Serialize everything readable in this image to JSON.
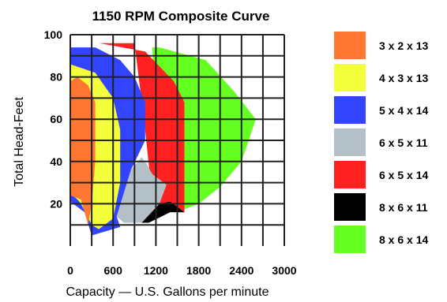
{
  "chart_data": {
    "type": "area",
    "title": "1150 RPM Composite Curve",
    "xlabel": "Capacity — U.S. Gallons per minute",
    "ylabel": "Total Head-Feet",
    "xlim": [
      0,
      3000
    ],
    "ylim": [
      0,
      100
    ],
    "x_ticks": [
      "0",
      "600",
      "1200",
      "1800",
      "2400",
      "3000"
    ],
    "y_ticks": [
      "20",
      "40",
      "60",
      "80",
      "100"
    ],
    "x_tick_values": [
      0,
      600,
      1200,
      1800,
      2400,
      3000
    ],
    "y_tick_values": [
      20,
      40,
      60,
      80,
      100
    ],
    "grid": true,
    "legend_position": "right",
    "series": [
      {
        "name": "8 x 6 x 14",
        "color": "#66ff22",
        "points": [
          [
            1250,
            94
          ],
          [
            1900,
            88
          ],
          [
            2300,
            73
          ],
          [
            2600,
            60
          ],
          [
            2400,
            40
          ],
          [
            2100,
            28
          ],
          [
            1800,
            20
          ],
          [
            1500,
            16
          ],
          [
            1200,
            30
          ],
          [
            1150,
            94
          ]
        ]
      },
      {
        "name": "6 x 5 x 14",
        "color": "#ff2020",
        "points": [
          [
            0,
            96
          ],
          [
            400,
            96
          ],
          [
            1050,
            92
          ],
          [
            1450,
            78
          ],
          [
            1600,
            68
          ],
          [
            1600,
            16
          ],
          [
            1350,
            16
          ],
          [
            1150,
            22
          ],
          [
            1050,
            55
          ],
          [
            900,
            96
          ]
        ]
      },
      {
        "name": "8 x 6 x 11",
        "color": "#000000",
        "points": [
          [
            1000,
            11
          ],
          [
            1250,
            20
          ],
          [
            1400,
            21
          ],
          [
            1600,
            16
          ],
          [
            1400,
            16
          ],
          [
            1100,
            11
          ]
        ]
      },
      {
        "name": "6 x 5 x 11",
        "color": "#b4c0c8",
        "points": [
          [
            850,
            36
          ],
          [
            1000,
            42
          ],
          [
            1050,
            40
          ],
          [
            1150,
            34
          ],
          [
            1350,
            29
          ],
          [
            1250,
            20
          ],
          [
            1000,
            11
          ],
          [
            750,
            11
          ],
          [
            650,
            14
          ]
        ]
      },
      {
        "name": "5 x 4 x 14",
        "color": "#3344ff",
        "points": [
          [
            0,
            94
          ],
          [
            350,
            94
          ],
          [
            700,
            88
          ],
          [
            900,
            80
          ],
          [
            1050,
            68
          ],
          [
            1050,
            50
          ],
          [
            850,
            36
          ],
          [
            650,
            14
          ],
          [
            700,
            9
          ],
          [
            500,
            7
          ],
          [
            300,
            5
          ],
          [
            200,
            16
          ],
          [
            0,
            21
          ]
        ]
      },
      {
        "name": "4 x 3 x 13",
        "color": "#f3ff3a",
        "points": [
          [
            0,
            86
          ],
          [
            350,
            82
          ],
          [
            600,
            70
          ],
          [
            700,
            55
          ],
          [
            700,
            40
          ],
          [
            700,
            30
          ],
          [
            600,
            13
          ],
          [
            400,
            8
          ],
          [
            300,
            10
          ],
          [
            150,
            20
          ],
          [
            100,
            22
          ],
          [
            0,
            25
          ]
        ]
      },
      {
        "name": "3 x 2 x 13",
        "color": "#ff7733",
        "points": [
          [
            0,
            78
          ],
          [
            100,
            80
          ],
          [
            250,
            76
          ],
          [
            350,
            68
          ],
          [
            350,
            40
          ],
          [
            300,
            20
          ],
          [
            250,
            10
          ],
          [
            150,
            22
          ],
          [
            0,
            24
          ]
        ]
      }
    ]
  },
  "legend": [
    {
      "label": "3 x 2 x 13",
      "color": "#ff7733"
    },
    {
      "label": "4 x 3 x 13",
      "color": "#f3ff3a"
    },
    {
      "label": "5 x 4 x 14",
      "color": "#3344ff"
    },
    {
      "label": "6 x 5 x 11",
      "color": "#b4c0c8"
    },
    {
      "label": "6 x 5 x 14",
      "color": "#ff2020"
    },
    {
      "label": "8 x 6 x 11",
      "color": "#000000"
    },
    {
      "label": "8 x 6 x 14",
      "color": "#66ff22"
    }
  ]
}
